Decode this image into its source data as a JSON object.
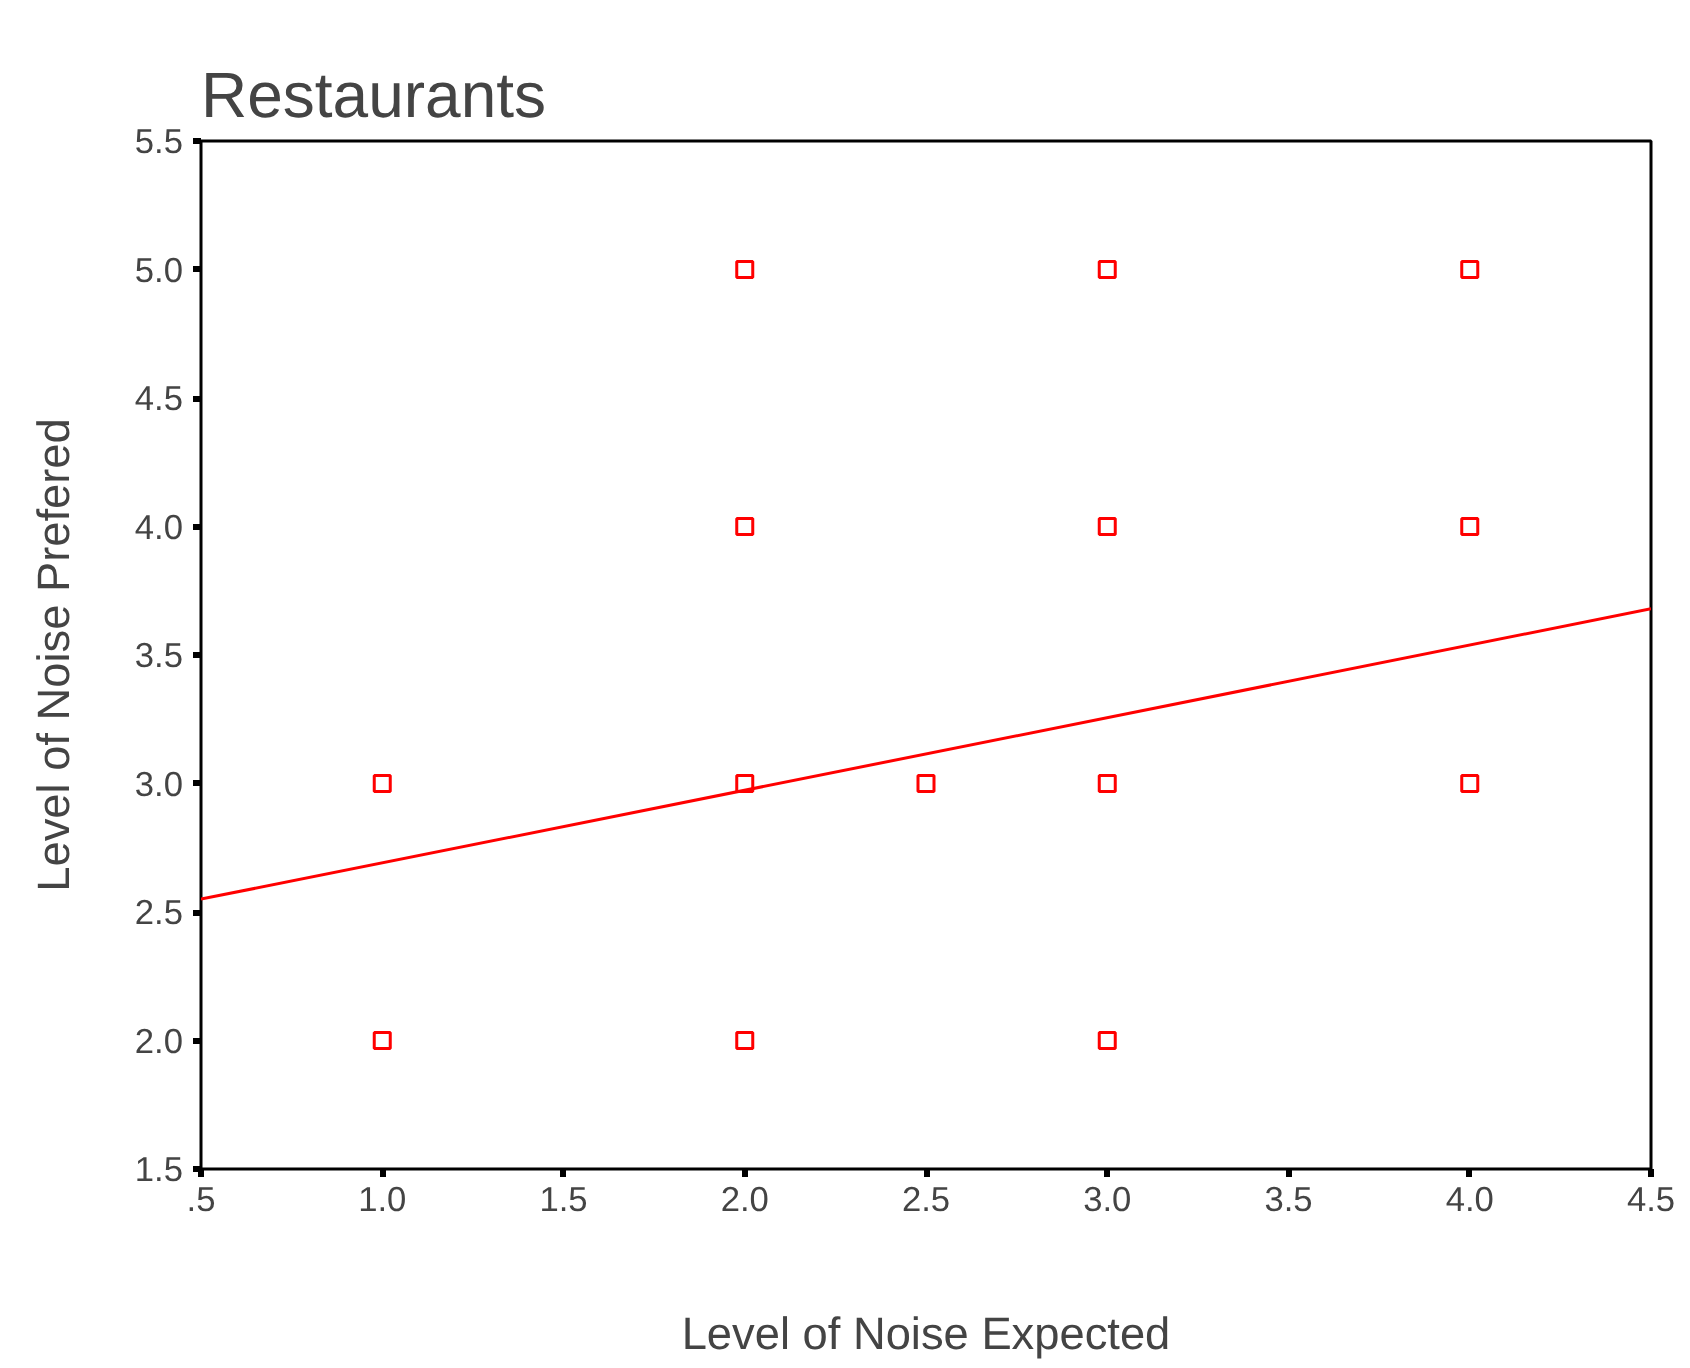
{
  "chart_data": {
    "type": "scatter",
    "title": "Restaurants",
    "xlabel": "Level of Noise Expected",
    "ylabel": "Level of Noise Prefered",
    "xlim": [
      0.5,
      4.5
    ],
    "ylim": [
      1.5,
      5.5
    ],
    "xticks": [
      {
        "value": 0.5,
        "label": ".5"
      },
      {
        "value": 1.0,
        "label": "1.0"
      },
      {
        "value": 1.5,
        "label": "1.5"
      },
      {
        "value": 2.0,
        "label": "2.0"
      },
      {
        "value": 2.5,
        "label": "2.5"
      },
      {
        "value": 3.0,
        "label": "3.0"
      },
      {
        "value": 3.5,
        "label": "3.5"
      },
      {
        "value": 4.0,
        "label": "4.0"
      },
      {
        "value": 4.5,
        "label": "4.5"
      }
    ],
    "yticks": [
      1.5,
      {
        "value": 2.0,
        "label": "2.0"
      },
      2.5,
      {
        "value": 3.0,
        "label": "3.0"
      },
      3.5,
      {
        "value": 4.0,
        "label": "4.0"
      },
      4.5,
      {
        "value": 5.0,
        "label": "5.0"
      },
      5.5
    ],
    "grid": false,
    "series": [
      {
        "marker": "square",
        "color": "#ff0000",
        "x": [
          1,
          1,
          2,
          2,
          2,
          2,
          2.5,
          3,
          3,
          3,
          3,
          4,
          4,
          4
        ],
        "values": [
          3,
          2,
          5,
          4,
          3,
          2,
          3,
          5,
          4,
          3,
          2,
          5,
          4,
          3
        ]
      },
      {
        "type": "line",
        "color": "#ff0000",
        "x": [
          0.5,
          4.5
        ],
        "values": [
          2.55,
          3.68
        ]
      }
    ]
  }
}
